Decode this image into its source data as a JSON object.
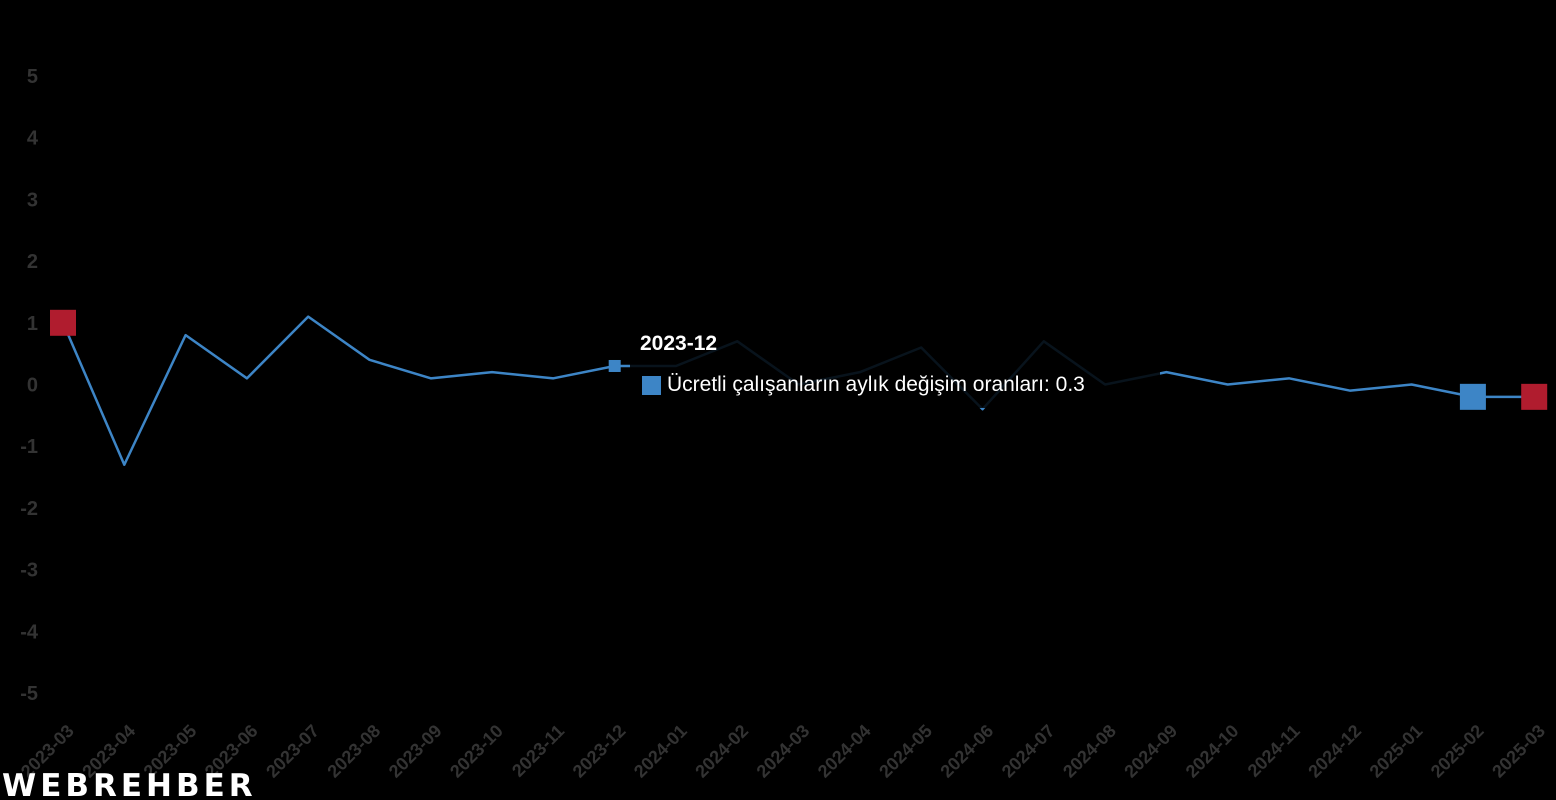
{
  "chart_data": {
    "type": "line",
    "title": "",
    "xlabel": "",
    "ylabel": "",
    "ylim": [
      -5,
      5
    ],
    "yticks": [
      5,
      4,
      3,
      2,
      1,
      0,
      -1,
      -2,
      -3,
      -4,
      -5
    ],
    "categories": [
      "2023-03",
      "2023-04",
      "2023-05",
      "2023-06",
      "2023-07",
      "2023-08",
      "2023-09",
      "2023-10",
      "2023-11",
      "2023-12",
      "2024-01",
      "2024-02",
      "2024-03",
      "2024-04",
      "2024-05",
      "2024-06",
      "2024-07",
      "2024-08",
      "2024-09",
      "2024-10",
      "2024-11",
      "2024-12",
      "2025-01",
      "2025-02",
      "2025-03"
    ],
    "series": [
      {
        "name": "Ücretli çalışanların aylık değişim oranları",
        "color": "#3d85c6",
        "values": [
          1.0,
          -1.3,
          0.8,
          0.1,
          1.1,
          0.4,
          0.1,
          0.2,
          0.1,
          0.3,
          0.3,
          0.7,
          0.0,
          0.2,
          0.6,
          -0.4,
          0.7,
          0.0,
          0.2,
          0.0,
          0.1,
          -0.1,
          0.0,
          -0.2,
          -0.2
        ]
      }
    ],
    "highlight_markers": [
      {
        "category": "2023-03",
        "color": "#b01c2e"
      },
      {
        "category": "2025-02",
        "color": "#3d85c6"
      },
      {
        "category": "2025-03",
        "color": "#b01c2e"
      }
    ],
    "active_point": "2023-12",
    "grid": false,
    "legend": "none"
  },
  "tooltip": {
    "title": "2023-12",
    "series_label": "Ücretli çalışanların aylık değişim oranları: 0.3",
    "swatch_color": "#3d85c6"
  },
  "watermark": {
    "text": "WEBREHBER"
  },
  "colors": {
    "background": "#000000",
    "line": "#3d85c6",
    "highlight_red": "#b01c2e",
    "tick_text": "#333333"
  }
}
